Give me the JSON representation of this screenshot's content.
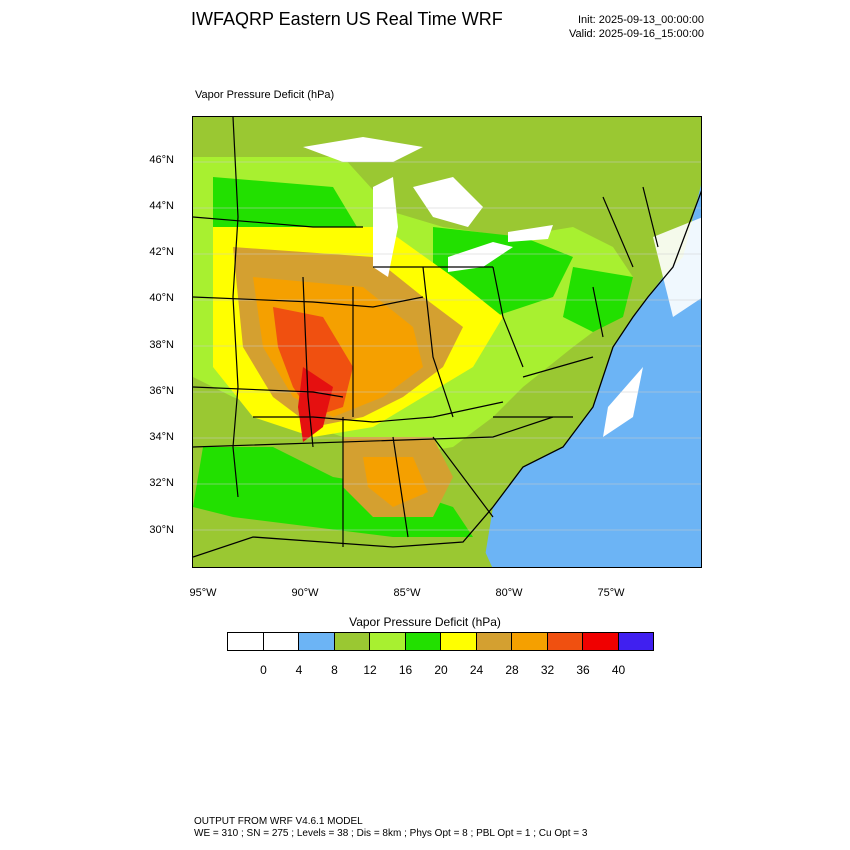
{
  "header": {
    "title": "IWFAQRP Eastern US Real Time WRF",
    "init": "Init: 2025-09-13_00:00:00",
    "valid": "Valid: 2025-09-16_15:00:00"
  },
  "map": {
    "field_label": "Vapor Pressure Deficit   (hPa)",
    "lat_labels": [
      "46°N",
      "44°N",
      "42°N",
      "40°N",
      "38°N",
      "36°N",
      "34°N",
      "32°N",
      "30°N"
    ],
    "lon_labels": [
      "95°W",
      "90°W",
      "85°W",
      "80°W",
      "75°W"
    ],
    "colors": {
      "lake": "#ffffff",
      "ocean": "#6cb4f5",
      "land_green": "#22e000",
      "land_lightgreen": "#a8f030",
      "land_olive": "#9ac832",
      "yellow": "#ffff00",
      "tan": "#d4a030",
      "orange": "#f5a000",
      "red_orange": "#f05010",
      "red": "#e51010"
    }
  },
  "legend": {
    "title": "Vapor Pressure Deficit  (hPa)",
    "ticks": [
      "0",
      "4",
      "8",
      "12",
      "16",
      "20",
      "24",
      "28",
      "32",
      "36",
      "40"
    ],
    "colors": [
      "#ffffff",
      "#ffffff",
      "#6cb4f5",
      "#9ac832",
      "#a8f030",
      "#22e000",
      "#ffff00",
      "#d4a030",
      "#f5a000",
      "#f05010",
      "#f00000",
      "#4020f0"
    ]
  },
  "footer": {
    "line1": "OUTPUT FROM WRF V4.6.1 MODEL",
    "line2": "WE = 310 ; SN = 275 ; Levels = 38 ; Dis = 8km ; Phys Opt = 8 ; PBL Opt = 1 ; Cu Opt = 3"
  }
}
